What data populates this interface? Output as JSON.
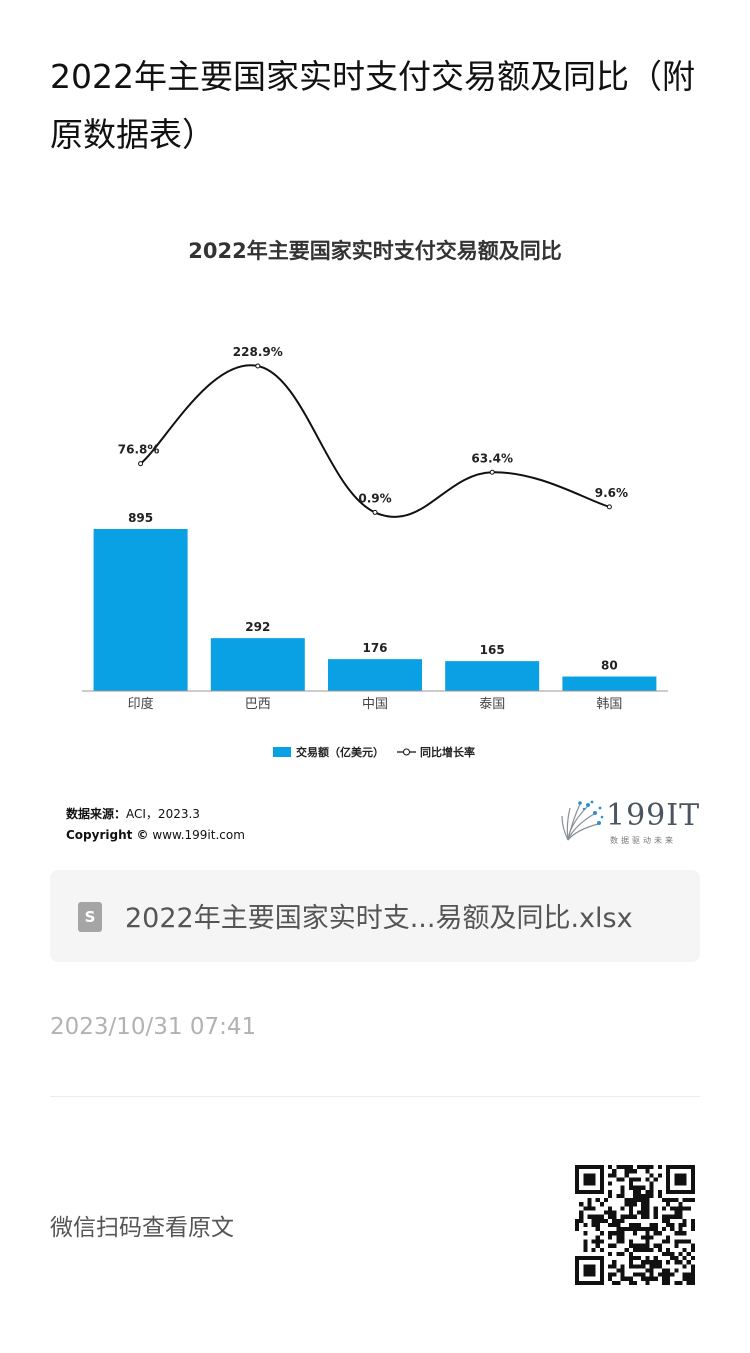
{
  "article": {
    "title": "2022年主要国家实时支付交易额及同比（附原数据表）",
    "file_name": "2022年主要国家实时支...易额及同比.xlsx",
    "file_icon_letter": "S",
    "timestamp": "2023/10/31 07:41",
    "wechat_hint": "微信扫码查看原文"
  },
  "source": {
    "label": "数据来源：",
    "value": "ACI，2023.3",
    "copyright_label": "Copyright ©",
    "copyright_site": "www.199it.com"
  },
  "brand": {
    "name": "199IT",
    "tagline": "数据驱动未来"
  },
  "colors": {
    "bar": "#0aa1e4",
    "line": "#111111",
    "logo": "#2e8fd0"
  },
  "chart_data": {
    "type": "bar",
    "title": "2022年主要国家实时支付交易额及同比",
    "categories": [
      "印度",
      "巴西",
      "中国",
      "泰国",
      "韩国"
    ],
    "series": [
      {
        "name": "交易额（亿美元）",
        "type": "bar",
        "values": [
          895,
          292,
          176,
          165,
          80
        ],
        "labels": [
          "895",
          "292",
          "176",
          "165",
          "80"
        ]
      },
      {
        "name": "同比增长率",
        "type": "line",
        "smooth": true,
        "values": [
          76.8,
          228.9,
          0.9,
          63.4,
          9.6
        ],
        "labels": [
          "76.8%",
          "228.9%",
          "0.9%",
          "63.4%",
          "9.6%"
        ]
      }
    ],
    "legend_position": "bottom",
    "grid": false
  }
}
